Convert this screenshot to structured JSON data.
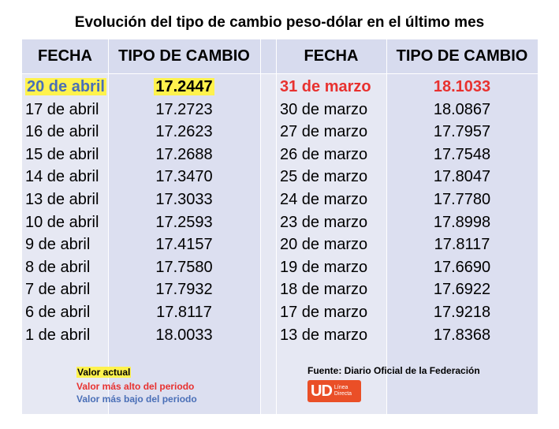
{
  "title": "Evolución del tipo de cambio peso-dólar en el último mes",
  "headers": {
    "date": "FECHA",
    "rate": "TIPO DE CAMBIO",
    "date2": "FECHA",
    "rate2": "TIPO DE CAMBIO"
  },
  "left_rows": [
    {
      "date": "20 de abril",
      "rate": "17.2447"
    },
    {
      "date": "17 de abril",
      "rate": "17.2723"
    },
    {
      "date": "16 de abril",
      "rate": "17.2623"
    },
    {
      "date": "15 de abril",
      "rate": "17.2688"
    },
    {
      "date": "14 de abril",
      "rate": "17.3470"
    },
    {
      "date": "13 de abril",
      "rate": "17.3033"
    },
    {
      "date": "10 de abril",
      "rate": "17.2593"
    },
    {
      "date": "9 de abril",
      "rate": "17.4157"
    },
    {
      "date": "8 de abril",
      "rate": "17.7580"
    },
    {
      "date": "7 de abril",
      "rate": "17.7932"
    },
    {
      "date": "6 de abril",
      "rate": "17.8117"
    },
    {
      "date": "1 de abril",
      "rate": "18.0033"
    }
  ],
  "right_rows": [
    {
      "date": "31 de marzo",
      "rate": "18.1033"
    },
    {
      "date": "30 de marzo",
      "rate": "18.0867"
    },
    {
      "date": "27 de marzo",
      "rate": "17.7957"
    },
    {
      "date": "26 de marzo",
      "rate": "17.7548"
    },
    {
      "date": "25 de marzo",
      "rate": "17.8047"
    },
    {
      "date": "24 de marzo",
      "rate": "17.7780"
    },
    {
      "date": "23 de marzo",
      "rate": "17.8998"
    },
    {
      "date": "20 de marzo",
      "rate": "17.8117"
    },
    {
      "date": "19 de marzo",
      "rate": "17.6690"
    },
    {
      "date": "18 de marzo",
      "rate": "17.6922"
    },
    {
      "date": "17 de marzo",
      "rate": "17.9218"
    },
    {
      "date": "13 de marzo",
      "rate": "17.8368"
    }
  ],
  "legend": {
    "current": "Valor actual",
    "highest": "Valor más alto del periodo",
    "lowest": "Valor más bajo del periodo"
  },
  "source": "Fuente: Diario Oficial de la Federación",
  "logo": {
    "mark": "UD",
    "text_line1": "Línea",
    "text_line2": "Directa"
  },
  "colors": {
    "highlight": "#fff24d",
    "red": "#e8312f",
    "blue": "#4a6fb7",
    "logo": "#ea4f27"
  }
}
